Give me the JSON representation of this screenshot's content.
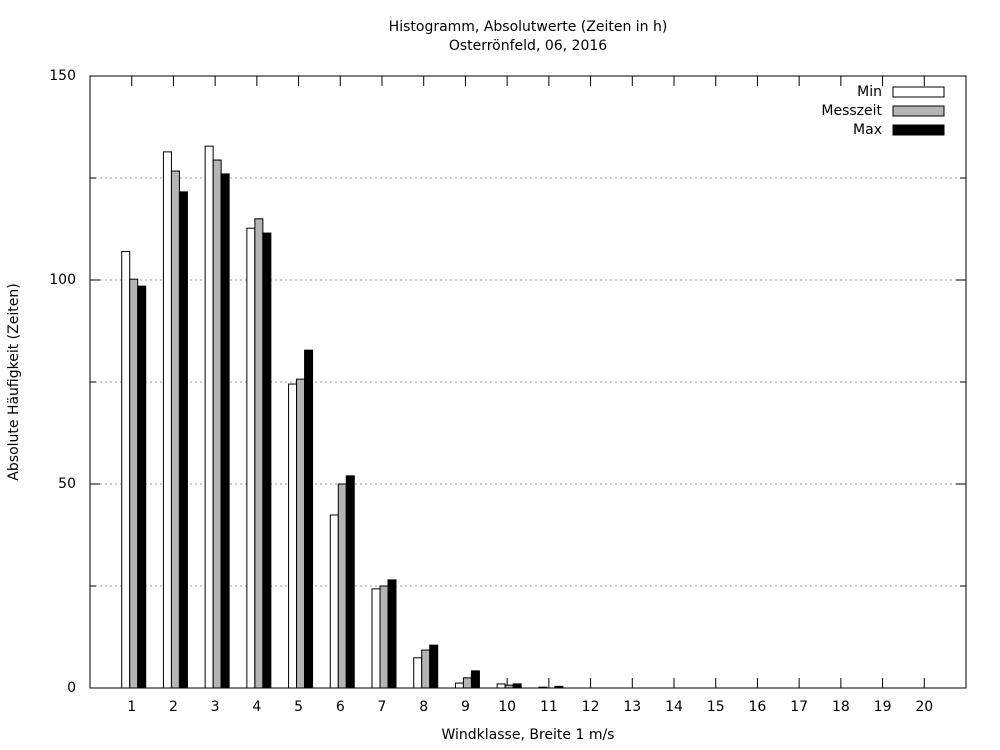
{
  "chart_data": {
    "type": "bar",
    "title": "Histogramm, Absolutwerte (Zeiten in h)",
    "subtitle": "Osterrönfeld, 06, 2016",
    "x_label": "Windklasse, Breite 1 m/s",
    "y_label": "Absolute Häufigkeit (Zeiten)",
    "x": [
      1,
      2,
      3,
      4,
      5,
      6,
      7,
      8,
      9,
      10,
      11,
      12,
      13,
      14,
      15,
      16,
      17,
      18,
      19,
      20
    ],
    "xlim": [
      0,
      21
    ],
    "xticks": [
      1,
      2,
      3,
      4,
      5,
      6,
      7,
      8,
      9,
      10,
      11,
      12,
      13,
      14,
      15,
      16,
      17,
      18,
      19,
      20
    ],
    "ylim": [
      0,
      150
    ],
    "yticks": [
      0,
      50,
      100,
      150
    ],
    "y_minor_ticks": [
      25,
      75,
      125
    ],
    "grid": true,
    "legend": "top-right",
    "series": [
      {
        "name": "Min",
        "color": "#ffffff",
        "values": [
          107,
          131.4,
          132.8,
          112.7,
          74.5,
          42.4,
          24.3,
          7.4,
          1.2,
          1,
          0.2,
          0,
          0,
          0,
          0,
          0,
          0,
          0,
          0,
          0
        ]
      },
      {
        "name": "Messzeit",
        "color": "#b4b4b4",
        "values": [
          100.2,
          126.7,
          129.4,
          115,
          75.7,
          50,
          25,
          9.3,
          2.5,
          0.7,
          0,
          0,
          0,
          0,
          0,
          0,
          0,
          0,
          0,
          0
        ]
      },
      {
        "name": "Max",
        "color": "#000000",
        "values": [
          98.5,
          121.6,
          126,
          111.5,
          82.8,
          52,
          26.5,
          10.5,
          4.2,
          1,
          0.4,
          0,
          0,
          0,
          0,
          0,
          0,
          0,
          0,
          0
        ]
      }
    ]
  }
}
